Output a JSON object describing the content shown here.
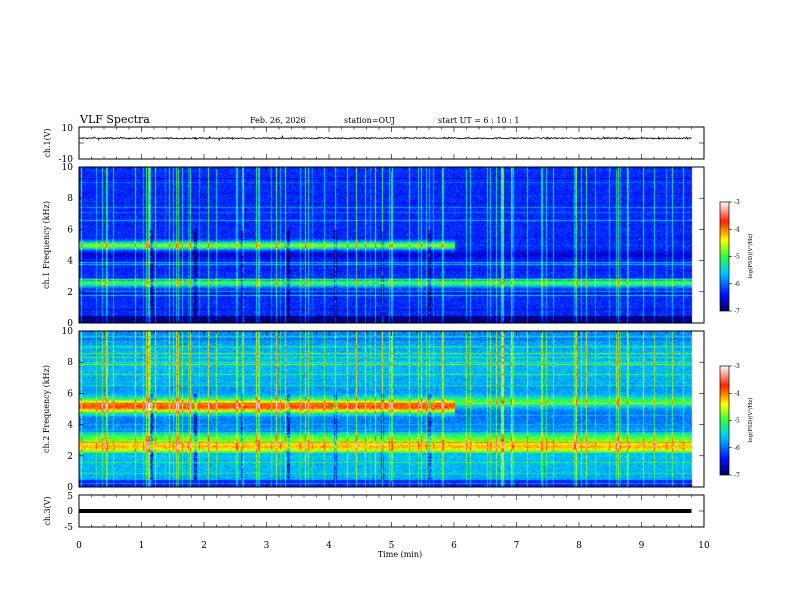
{
  "header": {
    "title": "VLF Spectra",
    "date": "Feb. 26, 2026",
    "station": "station=OUJ",
    "start_time": "start  UT =  6 : 10 : 1"
  },
  "chart_data": [
    {
      "type": "line",
      "panel": "ch1-waveform",
      "ylabel": "ch.1(V)",
      "ylim": [
        -10,
        10
      ],
      "yticks": [
        "10",
        "-10"
      ],
      "xlim": [
        0,
        10
      ],
      "trace": "noisy signal centered near 3 V, amplitude about ±1 V, x from 0 to 9.8 min"
    },
    {
      "type": "heatmap",
      "panel": "ch1-spectrogram",
      "ylabel": "ch.1\nFrequency (kHz)",
      "ylim": [
        0,
        10
      ],
      "yticks": [
        "0",
        "2",
        "4",
        "6",
        "8",
        "10"
      ],
      "xlim": [
        0,
        10
      ],
      "colorbar": {
        "label": "log(PSD)(V²/Hz)",
        "range": [
          -7,
          -3
        ],
        "ticks": [
          "-3",
          "-4",
          "-5",
          "-6",
          "-7"
        ]
      },
      "bands_khz": [
        {
          "f": 5.0,
          "level": -4.8,
          "until_min": 6.0
        },
        {
          "f": 2.6,
          "level": -5.0
        },
        {
          "f": 1.6,
          "level": -6.3
        },
        {
          "f": 4.4,
          "level": -6.6
        }
      ],
      "noise_floor_log_psd": -6.3
    },
    {
      "type": "heatmap",
      "panel": "ch2-spectrogram",
      "ylabel": "ch.2\nFrequency (kHz)",
      "ylim": [
        0,
        10
      ],
      "yticks": [
        "0",
        "2",
        "4",
        "6",
        "8",
        "10"
      ],
      "xlim": [
        0,
        10
      ],
      "colorbar": {
        "label": "log(PSD)(V²/Hz)",
        "range": [
          -7,
          -3
        ],
        "ticks": [
          "-3",
          "-4",
          "-5",
          "-6",
          "-7"
        ]
      },
      "bands_khz": [
        {
          "f": 5.1,
          "level": -4.0,
          "until_min": 6.0
        },
        {
          "f": 2.6,
          "level": -4.3
        },
        {
          "f": 5.5,
          "level": -4.9
        },
        {
          "f": 3.2,
          "level": -5.0
        }
      ],
      "noise_floor_log_psd": -5.8
    },
    {
      "type": "line",
      "panel": "ch3-waveform",
      "ylabel": "ch.3(V)",
      "ylim": [
        -5,
        5
      ],
      "yticks": [
        "5",
        "0",
        "-5"
      ],
      "xlim": [
        0,
        10
      ],
      "trace": "flat line near 0 V, x from 0 to 9.8 min"
    }
  ],
  "x_axis": {
    "label": "Time (min)",
    "ticks": [
      "0",
      "1",
      "2",
      "3",
      "4",
      "5",
      "6",
      "7",
      "8",
      "9",
      "10"
    ]
  }
}
